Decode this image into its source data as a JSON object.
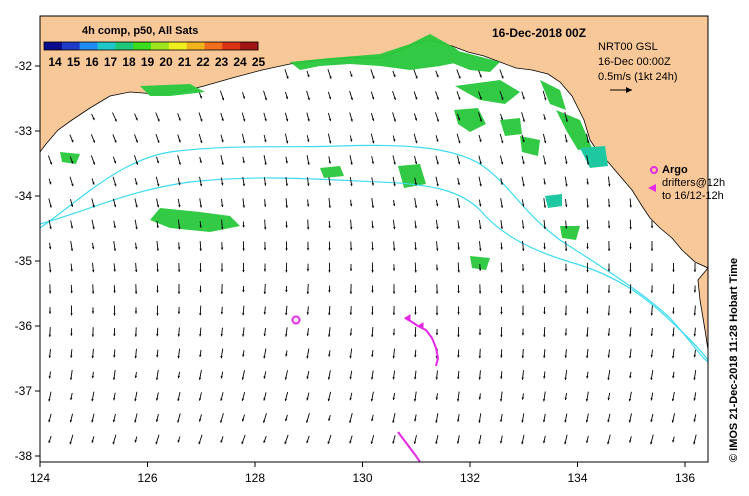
{
  "colorbar": {
    "title": "4h comp, p50, All Sats",
    "ticks": [
      "14",
      "15",
      "16",
      "17",
      "18",
      "19",
      "20",
      "21",
      "22",
      "23",
      "24",
      "25"
    ],
    "colors": [
      "#0a0a8c",
      "#1e3cc8",
      "#1e8cf0",
      "#1ec8c8",
      "#1ec878",
      "#3cdc1e",
      "#a0e61e",
      "#f0f01e",
      "#f0b41e",
      "#f06e1e",
      "#dc3214",
      "#a01414"
    ]
  },
  "header": {
    "date": "16-Dec-2018 00Z",
    "product": "NRT00 GSL",
    "time": "16-Dec 00:00Z",
    "scale": "0.5m/s (1kt 24h)"
  },
  "legend": {
    "argo": "Argo",
    "drifters_line1": "drifters@12h",
    "drifters_line2": "to 16/12-12h"
  },
  "axes": {
    "x_ticks": [
      "124",
      "126",
      "128",
      "130",
      "132",
      "134",
      "136"
    ],
    "y_ticks": [
      "-32",
      "-33",
      "-34",
      "-35",
      "-36",
      "-37",
      "-38"
    ]
  },
  "credit": "© IMOS 21-Dec-2018 11:28 Hobart Time",
  "colors": {
    "land": "#f9c898",
    "sst_green": "#28c83c",
    "sst_teal": "#1ec8a0",
    "contour": "#3cdcf0",
    "argo_drifter": "#e628e6"
  }
}
